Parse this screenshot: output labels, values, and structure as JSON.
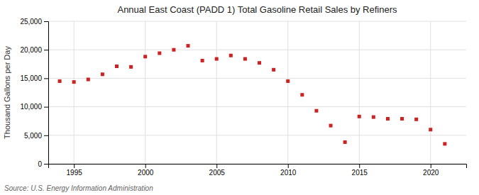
{
  "chart_data": {
    "type": "scatter",
    "title": "Annual East Coast (PADD 1) Total Gasoline Retail Sales by Refiners",
    "ylabel": "Thousand Gallons per Day",
    "source": "Source: U.S. Energy Information Administration",
    "x": [
      1994,
      1995,
      1996,
      1997,
      1998,
      1999,
      2000,
      2001,
      2002,
      2003,
      2004,
      2005,
      2006,
      2007,
      2008,
      2009,
      2010,
      2011,
      2012,
      2013,
      2014,
      2015,
      2016,
      2017,
      2018,
      2019,
      2020,
      2021
    ],
    "values": [
      14500,
      14350,
      14800,
      15700,
      17100,
      17000,
      18800,
      19400,
      20000,
      20700,
      18100,
      18400,
      19000,
      18400,
      17700,
      16500,
      14500,
      12100,
      9300,
      6700,
      3800,
      8300,
      8200,
      7900,
      7900,
      7800,
      6000,
      3500
    ],
    "color": "#cc2222",
    "marker": "square",
    "xlim": [
      1993.2,
      2022.5
    ],
    "xticks": [
      1995,
      2000,
      2005,
      2010,
      2015,
      2020
    ],
    "ylim": [
      0,
      25000
    ],
    "yticks": [
      0,
      {
        "value": 5000,
        "label": "5,000"
      },
      {
        "value": 10000,
        "label": "10,000"
      },
      {
        "value": 15000,
        "label": "15,000"
      },
      {
        "value": 20000,
        "label": "20,000"
      },
      {
        "value": 25000,
        "label": "25,000"
      }
    ],
    "grid": true
  }
}
